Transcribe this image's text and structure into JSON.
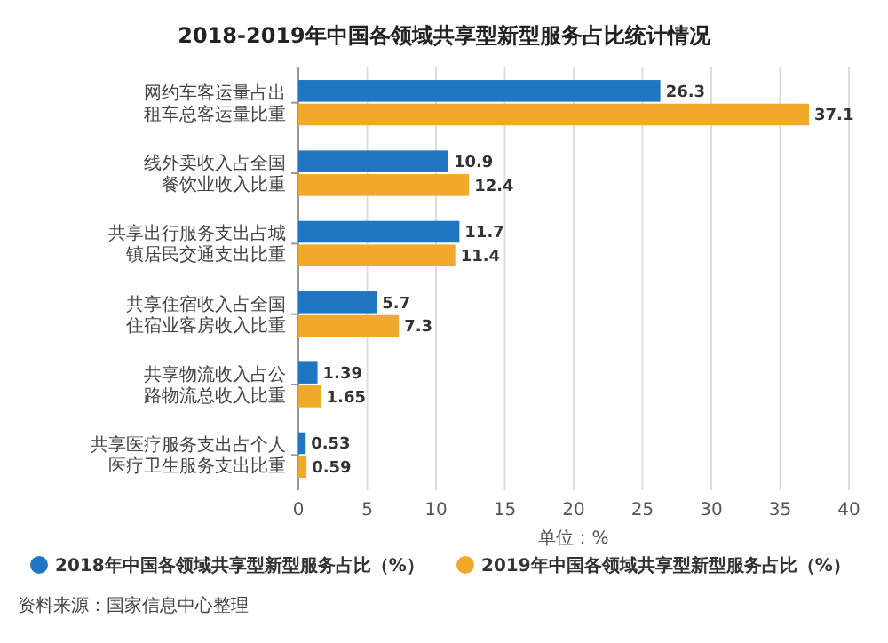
{
  "chart_data": {
    "type": "bar",
    "orientation": "horizontal",
    "title": "2018-2019年中国各领域共享型新型服务占比统计情况",
    "categories": [
      "网约车客运量占出租车总客运量比重",
      "线外卖收入占全国餐饮业收入比重",
      "共享出行服务支出占城镇居民交通支出比重",
      "共享住宿收入占全国住宿业客房收入比重",
      "共享物流收入占公路物流总收入比重",
      "共享医疗服务支出占个人医疗卫生服务支出比重"
    ],
    "series": [
      {
        "name": "2018年中国各领域共享型新型服务占比（%）",
        "color": "#1f77c4",
        "values": [
          26.3,
          10.9,
          11.7,
          5.7,
          1.39,
          0.53
        ]
      },
      {
        "name": "2019年中国各领域共享型新型服务占比（%）",
        "color": "#f0a92a",
        "values": [
          37.1,
          12.4,
          11.4,
          7.3,
          1.65,
          0.59
        ]
      }
    ],
    "xlim": [
      0,
      40
    ],
    "xticks": [
      0,
      5,
      10,
      15,
      20,
      25,
      30,
      35,
      40
    ],
    "xlabel": "单位：%",
    "grid": "x",
    "legend": "bottom",
    "data_labels": true,
    "annotations": [
      "资料来源：国家信息中心整理"
    ]
  }
}
